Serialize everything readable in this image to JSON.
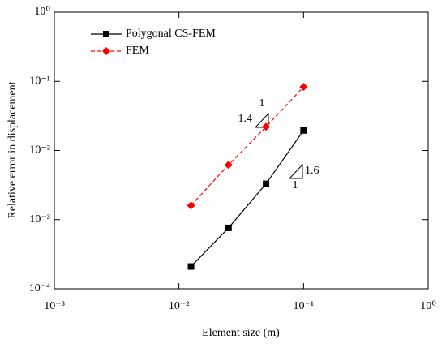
{
  "chart_data": {
    "type": "line",
    "xlabel": "Element size (m)",
    "ylabel": "Relative error in displacement",
    "log_x": true,
    "log_y": true,
    "legend": "upper left",
    "x": [
      0.0125,
      0.025,
      0.05,
      0.1
    ],
    "series": [
      {
        "name": "Polygonal CS-FEM",
        "color": "#000000",
        "line": "solid",
        "marker": "square",
        "values": [
          0.00021,
          0.00076,
          0.0033,
          0.0195
        ]
      },
      {
        "name": "FEM",
        "color": "#ff0000",
        "line": "dashed",
        "marker": "diamond",
        "values": [
          0.0016,
          0.0062,
          0.022,
          0.083
        ]
      }
    ],
    "xlim": [
      0.001,
      1
    ],
    "ylim": [
      0.0001,
      1
    ],
    "xticks": [
      {
        "value": 0.001,
        "label": "10⁻³"
      },
      {
        "value": 0.01,
        "label": "10⁻²"
      },
      {
        "value": 0.1,
        "label": "10⁻¹"
      },
      {
        "value": 1,
        "label": "10⁰"
      }
    ],
    "yticks": [
      {
        "value": 0.0001,
        "label": "10⁻⁴"
      },
      {
        "value": 0.001,
        "label": "10⁻³"
      },
      {
        "value": 0.01,
        "label": "10⁻²"
      },
      {
        "value": 0.1,
        "label": "10⁻¹"
      },
      {
        "value": 1,
        "label": "10⁰"
      }
    ],
    "annotations": [
      {
        "text": "1"
      },
      {
        "text": "1.4"
      },
      {
        "text": "1.6"
      },
      {
        "text": "1"
      }
    ]
  }
}
